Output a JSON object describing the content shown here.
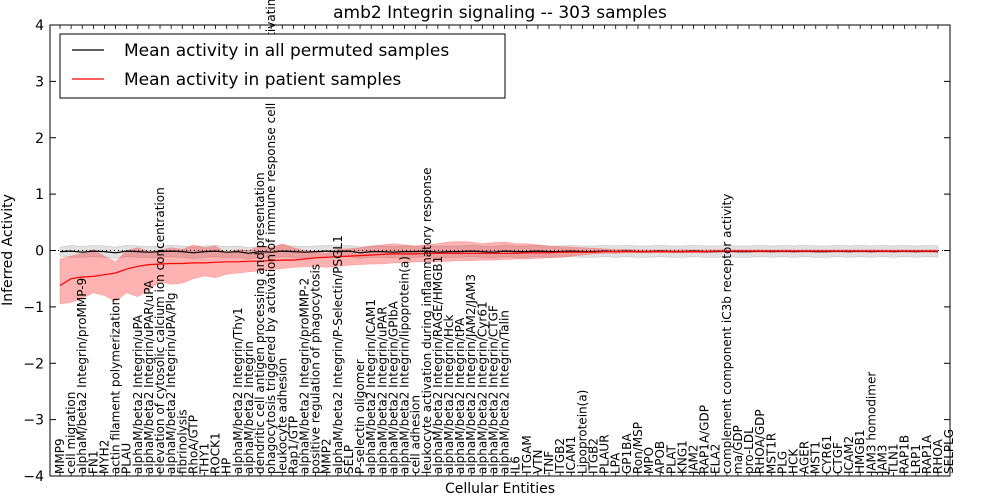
{
  "chart_data": {
    "type": "line",
    "title": "amb2 Integrin signaling -- 303 samples",
    "xlabel": "Cellular Entities",
    "ylabel": "Inferred Activity",
    "ylim": [
      -4,
      4
    ],
    "yticks": [
      -4,
      -3,
      -2,
      -1,
      0,
      1,
      2,
      3,
      4
    ],
    "grid": false,
    "legend_position": "top-left",
    "categories": [
      "MMP9",
      "cell migration",
      "alphaM/beta2 Integrin/proMMP-9",
      "FN1",
      "MYH2",
      "actin filament polymerization",
      "PLAU",
      "alphaM/beta2 Integrin/uPA",
      "alphaM/beta2 Integrin/uPAR/uPA",
      "elevation of cytosolic calcium ion concentration",
      "alphaM/beta2 Integrin/uPA/Plg",
      "fibrinolysis",
      "RhoA/GTP",
      "THY1",
      "ROCK1",
      "HP",
      "alphaM/beta2 Integrin/Thy1",
      "alphaM/beta2 Integrin",
      "dendritic cell antigen processing and presentation",
      "phagocytosis triggered by activation of immune response cell surface activating receptor",
      "leukocyte adhesion",
      "Rap1/GTP",
      "alphaM/beta2 Integrin/proMMP-2",
      "positive regulation of phagocytosis",
      "MMP2",
      "alphaM/beta2 Integrin/P-Selectin/PSGL1",
      "SELP",
      "P-selectin oligomer",
      "alphaM/beta2 Integrin/ICAM1",
      "alphaM/beta2 Integrin/uPAR",
      "alphaM/beta2 Integrin/GPIbA",
      "alphaM/beta2 Integrin/lipoprotein(a)",
      "cell adhesion",
      "leukocyte activation during inflammatory response",
      "alphaM/beta2 Integrin/RAGE/HMGB1",
      "alphaM/beta2 Integrin/Hck",
      "alphaM/beta2 Integrin/tPA",
      "alphaM/beta2 Integrin/JAM2/JAM3",
      "alphaM/beta2 Integrin/Cyr61",
      "alphaM/beta2 Integrin/CTGF",
      "alphaM/beta2 Integrin/Talin",
      "IL6",
      "ITGAM",
      "VTN",
      "TNF",
      "ITGB2",
      "ICAM1",
      "Lipoprotein(a)",
      "ITGB2",
      "PLAUR",
      "LPA",
      "GP1BA",
      "Ron/MSP",
      "MPO",
      "APOB",
      "PLAT",
      "KNG1",
      "JAM2",
      "RAP1A/GDP",
      "ELA2",
      "complement component iC3b receptor activity",
      "ma/GDP",
      "pro-LDL",
      "RHOA/GDP",
      "MST1R",
      "PLG",
      "HCK",
      "AGER",
      "MST1",
      "CYR61",
      "CTGF",
      "ICAM2",
      "HMGB1",
      "JAM3 homodimer",
      "JAM3",
      "TLN1",
      "RAP1B",
      "LRP1",
      "RAP1A",
      "RHOA",
      "SELPLG"
    ],
    "x": [
      1,
      2,
      3,
      4,
      5,
      6,
      7,
      8,
      9,
      10,
      11,
      12,
      13,
      14,
      15,
      16,
      17,
      18,
      19,
      20,
      21,
      22,
      23,
      24,
      25,
      26,
      27,
      28,
      29,
      30,
      31,
      32,
      33,
      34,
      35,
      36,
      37,
      38,
      39,
      40,
      41,
      42,
      43,
      44,
      45,
      46,
      47,
      48,
      49,
      50,
      51,
      52,
      53,
      54,
      55,
      56,
      57,
      58,
      59,
      60,
      61,
      62,
      63,
      64,
      65,
      66,
      67,
      68,
      69,
      70,
      71,
      72,
      73,
      74,
      75,
      76,
      77,
      78,
      79,
      80
    ],
    "series": [
      {
        "name": "Mean activity in all permuted samples",
        "color": "#000000",
        "values": [
          -0.02,
          -0.01,
          -0.03,
          -0.01,
          -0.02,
          -0.04,
          -0.01,
          -0.02,
          -0.03,
          -0.02,
          -0.01,
          -0.02,
          -0.04,
          -0.02,
          -0.01,
          -0.03,
          -0.02,
          -0.05,
          -0.02,
          -0.03,
          -0.01,
          -0.02,
          -0.03,
          -0.02,
          -0.01,
          -0.02,
          -0.01,
          -0.04,
          -0.02,
          -0.02,
          -0.03,
          -0.02,
          -0.02,
          -0.01,
          -0.03,
          -0.02,
          -0.02,
          -0.01,
          -0.02,
          -0.03,
          -0.01,
          -0.02,
          -0.02,
          -0.01,
          -0.02,
          -0.02,
          -0.01,
          -0.02,
          -0.02,
          -0.01,
          -0.02,
          -0.01,
          -0.02,
          -0.02,
          -0.01,
          -0.02,
          -0.02,
          -0.01,
          -0.02,
          -0.02,
          -0.01,
          -0.02,
          -0.02,
          -0.01,
          -0.02,
          -0.01,
          -0.02,
          -0.01,
          -0.02,
          -0.02,
          -0.01,
          -0.02,
          -0.01,
          -0.02,
          -0.01,
          -0.02,
          -0.01,
          -0.02,
          -0.01,
          -0.02
        ],
        "band_lower": [
          -0.1,
          -0.12,
          -0.12,
          -0.11,
          -0.12,
          -0.14,
          -0.11,
          -0.12,
          -0.13,
          -0.12,
          -0.11,
          -0.12,
          -0.14,
          -0.12,
          -0.11,
          -0.13,
          -0.12,
          -0.15,
          -0.12,
          -0.13,
          -0.11,
          -0.12,
          -0.13,
          -0.12,
          -0.11,
          -0.12,
          -0.11,
          -0.14,
          -0.12,
          -0.12,
          -0.13,
          -0.12,
          -0.12,
          -0.11,
          -0.13,
          -0.12,
          -0.12,
          -0.11,
          -0.12,
          -0.13,
          -0.11,
          -0.12,
          -0.12,
          -0.11,
          -0.12,
          -0.12,
          -0.11,
          -0.12,
          -0.12,
          -0.11,
          -0.12,
          -0.11,
          -0.12,
          -0.12,
          -0.11,
          -0.12,
          -0.12,
          -0.11,
          -0.12,
          -0.12,
          -0.11,
          -0.12,
          -0.12,
          -0.11,
          -0.12,
          -0.11,
          -0.12,
          -0.11,
          -0.12,
          -0.12,
          -0.11,
          -0.12,
          -0.11,
          -0.12,
          -0.11,
          -0.12,
          -0.11,
          -0.12,
          -0.11,
          -0.12
        ],
        "band_upper": [
          0.06,
          0.09,
          0.07,
          0.09,
          0.08,
          0.06,
          0.09,
          0.08,
          0.07,
          0.08,
          0.09,
          0.08,
          0.06,
          0.08,
          0.09,
          0.07,
          0.08,
          0.05,
          0.08,
          0.07,
          0.09,
          0.08,
          0.07,
          0.08,
          0.09,
          0.08,
          0.09,
          0.06,
          0.08,
          0.08,
          0.07,
          0.08,
          0.08,
          0.09,
          0.07,
          0.08,
          0.08,
          0.09,
          0.08,
          0.07,
          0.09,
          0.08,
          0.08,
          0.09,
          0.08,
          0.08,
          0.09,
          0.08,
          0.08,
          0.09,
          0.08,
          0.09,
          0.08,
          0.08,
          0.09,
          0.08,
          0.08,
          0.09,
          0.08,
          0.08,
          0.09,
          0.08,
          0.08,
          0.09,
          0.08,
          0.09,
          0.08,
          0.09,
          0.08,
          0.08,
          0.09,
          0.08,
          0.09,
          0.08,
          0.09,
          0.08,
          0.09,
          0.08,
          0.09,
          0.08
        ]
      },
      {
        "name": "Mean activity in patient samples",
        "color": "#ff0000",
        "values": [
          -0.62,
          -0.5,
          -0.47,
          -0.46,
          -0.43,
          -0.4,
          -0.33,
          -0.28,
          -0.25,
          -0.24,
          -0.23,
          -0.23,
          -0.22,
          -0.22,
          -0.21,
          -0.2,
          -0.2,
          -0.19,
          -0.19,
          -0.18,
          -0.17,
          -0.17,
          -0.15,
          -0.13,
          -0.12,
          -0.11,
          -0.1,
          -0.09,
          -0.08,
          -0.07,
          -0.06,
          -0.06,
          -0.06,
          -0.05,
          -0.05,
          -0.05,
          -0.05,
          -0.05,
          -0.05,
          -0.05,
          -0.05,
          -0.05,
          -0.04,
          -0.04,
          -0.04,
          -0.03,
          -0.03,
          -0.03,
          -0.03,
          -0.02,
          -0.02,
          -0.02,
          -0.02,
          -0.02,
          -0.02,
          -0.02,
          -0.02,
          -0.02,
          -0.02,
          -0.01,
          -0.01,
          -0.01,
          -0.01,
          -0.01,
          -0.01,
          -0.01,
          -0.01,
          -0.01,
          -0.01,
          -0.01,
          -0.01,
          -0.01,
          -0.01,
          -0.01,
          -0.01,
          -0.01,
          -0.01,
          -0.01,
          -0.01,
          -0.01
        ],
        "band_lower": [
          -0.95,
          -0.92,
          -0.85,
          -0.75,
          -0.8,
          -0.9,
          -0.75,
          -0.82,
          -0.7,
          -0.55,
          -0.6,
          -0.58,
          -0.5,
          -0.45,
          -0.48,
          -0.42,
          -0.4,
          -0.38,
          -0.36,
          -0.34,
          -0.32,
          -0.3,
          -0.29,
          -0.28,
          -0.3,
          -0.28,
          -0.26,
          -0.25,
          -0.24,
          -0.24,
          -0.22,
          -0.22,
          -0.2,
          -0.2,
          -0.2,
          -0.19,
          -0.18,
          -0.18,
          -0.17,
          -0.17,
          -0.16,
          -0.15,
          -0.15,
          -0.14,
          -0.13,
          -0.12,
          -0.1,
          -0.08,
          -0.06,
          -0.05,
          -0.05,
          -0.04,
          -0.04,
          -0.04,
          -0.04,
          -0.04,
          -0.04,
          -0.04,
          -0.04,
          -0.03,
          -0.03,
          -0.03,
          -0.03,
          -0.03,
          -0.03,
          -0.03,
          -0.03,
          -0.03,
          -0.03,
          -0.03,
          -0.03,
          -0.03,
          -0.03,
          -0.03,
          -0.03,
          -0.03,
          -0.03,
          -0.03,
          -0.03,
          -0.03
        ],
        "band_upper": [
          -0.15,
          -0.1,
          -0.05,
          0.02,
          -0.1,
          -0.2,
          0.0,
          0.05,
          -0.02,
          0.0,
          0.05,
          0.02,
          0.1,
          0.05,
          0.08,
          -0.05,
          0.02,
          0.0,
          0.08,
          0.05,
          0.12,
          0.05,
          0.0,
          -0.02,
          -0.05,
          0.02,
          0.03,
          0.05,
          0.08,
          0.1,
          0.12,
          0.1,
          0.08,
          0.1,
          0.12,
          0.15,
          0.16,
          0.15,
          0.12,
          0.14,
          0.15,
          0.12,
          0.12,
          0.1,
          0.08,
          0.07,
          0.06,
          0.05,
          0.04,
          0.03,
          0.02,
          0.02,
          0.01,
          0.01,
          0.01,
          0.01,
          0.01,
          0.01,
          0.01,
          0.01,
          0.01,
          0.01,
          0.01,
          0.01,
          0.01,
          0.01,
          0.01,
          0.01,
          0.01,
          0.01,
          0.01,
          0.01,
          0.01,
          0.01,
          0.01,
          0.01,
          0.01,
          0.01,
          0.01,
          0.01
        ]
      }
    ]
  }
}
